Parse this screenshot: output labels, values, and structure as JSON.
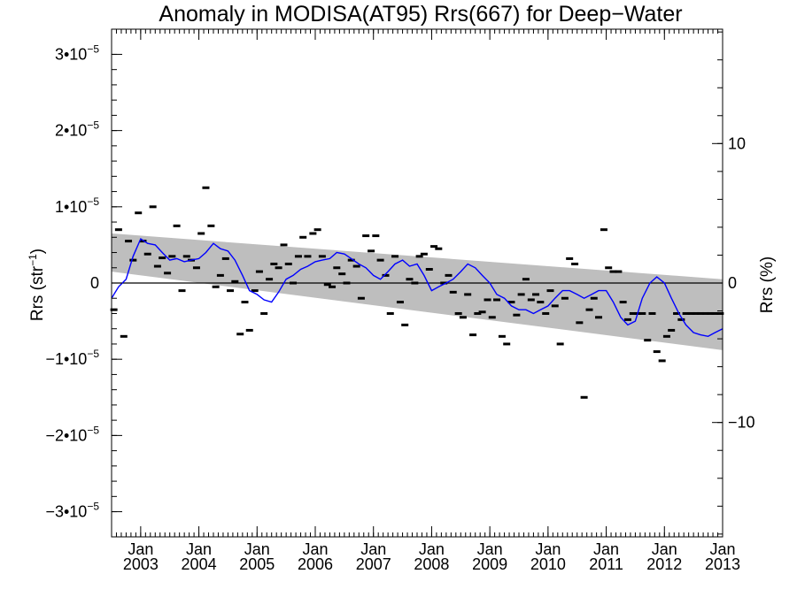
{
  "chart_data": {
    "type": "scatter",
    "title": "Anomaly in MODISA(AT95) Rrs(667) for Deep−Water",
    "ylabel_left": {
      "base": "Rrs (str",
      "sup": "−1",
      "tail": ")"
    },
    "ylabel_right": "Rrs (%)",
    "xlim": [
      2002.5,
      2013.0
    ],
    "ylim_left": [
      -3.33e-05,
      3.33e-05
    ],
    "ylim_right": [
      -18.2,
      18.2
    ],
    "left_ticks": [
      {
        "value": 3e-05,
        "coef": "3•10",
        "exp": "−5"
      },
      {
        "value": 2e-05,
        "coef": "2•10",
        "exp": "−5"
      },
      {
        "value": 1e-05,
        "coef": "1•10",
        "exp": "−5"
      },
      {
        "value": 0,
        "coef": "0",
        "exp": ""
      },
      {
        "value": -1e-05,
        "coef": "−1•10",
        "exp": "−5"
      },
      {
        "value": -2e-05,
        "coef": "−2•10",
        "exp": "−5"
      },
      {
        "value": -3e-05,
        "coef": "−3•10",
        "exp": "−5"
      }
    ],
    "right_ticks": [
      {
        "value": 10,
        "label": "10"
      },
      {
        "value": 0,
        "label": "0"
      },
      {
        "value": -10,
        "label": "−10"
      }
    ],
    "x_ticks": [
      {
        "value": 2003.0,
        "month": "Jan",
        "year": "2003"
      },
      {
        "value": 2004.0,
        "month": "Jan",
        "year": "2004"
      },
      {
        "value": 2005.0,
        "month": "Jan",
        "year": "2005"
      },
      {
        "value": 2006.0,
        "month": "Jan",
        "year": "2006"
      },
      {
        "value": 2007.0,
        "month": "Jan",
        "year": "2007"
      },
      {
        "value": 2008.0,
        "month": "Jan",
        "year": "2008"
      },
      {
        "value": 2009.0,
        "month": "Jan",
        "year": "2009"
      },
      {
        "value": 2010.0,
        "month": "Jan",
        "year": "2010"
      },
      {
        "value": 2011.0,
        "month": "Jan",
        "year": "2011"
      },
      {
        "value": 2012.0,
        "month": "Jan",
        "year": "2012"
      },
      {
        "value": 2013.0,
        "month": "Jan",
        "year": "2013"
      }
    ],
    "band": {
      "x": [
        2002.5,
        2013.0
      ],
      "upper": [
        6.5e-06,
        5e-07
      ],
      "lower": [
        1.5e-06,
        -8.8e-06
      ]
    },
    "zero_line": 0,
    "series": [
      {
        "kind": "monthly_markers",
        "x": [
          2002.54,
          2002.62,
          2002.71,
          2002.79,
          2002.87,
          2002.96,
          2003.04,
          2003.12,
          2003.21,
          2003.29,
          2003.37,
          2003.46,
          2003.54,
          2003.62,
          2003.71,
          2003.79,
          2003.87,
          2003.96,
          2004.04,
          2004.12,
          2004.21,
          2004.29,
          2004.37,
          2004.46,
          2004.54,
          2004.62,
          2004.71,
          2004.79,
          2004.87,
          2004.96,
          2005.04,
          2005.12,
          2005.21,
          2005.29,
          2005.37,
          2005.46,
          2005.54,
          2005.62,
          2005.71,
          2005.79,
          2005.87,
          2005.96,
          2006.04,
          2006.12,
          2006.21,
          2006.29,
          2006.37,
          2006.46,
          2006.54,
          2006.62,
          2006.71,
          2006.79,
          2006.87,
          2006.96,
          2007.04,
          2007.12,
          2007.21,
          2007.29,
          2007.37,
          2007.46,
          2007.54,
          2007.62,
          2007.71,
          2007.79,
          2007.87,
          2007.96,
          2008.04,
          2008.12,
          2008.21,
          2008.29,
          2008.37,
          2008.46,
          2008.54,
          2008.62,
          2008.71,
          2008.79,
          2008.87,
          2008.96,
          2009.04,
          2009.12,
          2009.21,
          2009.29,
          2009.37,
          2009.46,
          2009.54,
          2009.62,
          2009.71,
          2009.79,
          2009.87,
          2009.96,
          2010.04,
          2010.12,
          2010.21,
          2010.29,
          2010.37,
          2010.46,
          2010.54,
          2010.62,
          2010.71,
          2010.79,
          2010.87,
          2010.96,
          2011.04,
          2011.12,
          2011.21,
          2011.29,
          2011.37,
          2011.46,
          2011.54,
          2011.62,
          2011.71,
          2011.79,
          2011.87,
          2011.96,
          2012.04,
          2012.12,
          2012.21,
          2012.29,
          2012.37,
          2012.46,
          2012.54,
          2012.62,
          2012.71,
          2012.79,
          2012.87,
          2012.96
        ],
        "y": [
          -3.5e-06,
          7e-06,
          -7e-06,
          5.5e-06,
          3e-06,
          9.2e-06,
          5.5e-06,
          3.8e-06,
          1e-05,
          2.2e-06,
          3.3e-06,
          1.3e-06,
          3.5e-06,
          7.5e-06,
          -1e-06,
          3.5e-06,
          3e-06,
          2e-06,
          6.5e-06,
          1.25e-05,
          7.5e-06,
          -5e-07,
          1e-06,
          3.2e-06,
          -1e-06,
          2e-07,
          -6.7e-06,
          -2.5e-06,
          -6.2e-06,
          -1e-06,
          1.5e-06,
          -4e-06,
          5e-07,
          2.5e-06,
          2e-06,
          5e-06,
          2.5e-06,
          0.0,
          3.5e-06,
          6e-06,
          3.5e-06,
          6.5e-06,
          7e-06,
          3.5e-06,
          -2e-07,
          -5e-07,
          2e-06,
          1.2e-06,
          0.0,
          3e-06,
          2.2e-06,
          -2e-06,
          6.2e-06,
          4.2e-06,
          6.2e-06,
          3e-06,
          1e-06,
          -4e-06,
          3.5e-06,
          -2.5e-06,
          -5.5e-06,
          5e-07,
          0.0,
          3.5e-06,
          3.8e-06,
          1.8e-06,
          4.8e-06,
          4.5e-06,
          0.0,
          1e-06,
          -1.2e-06,
          -4e-06,
          -4.5e-06,
          -1.5e-06,
          -6.8e-06,
          -4e-06,
          -3.8e-06,
          -2.2e-06,
          -4.5e-06,
          -2.2e-06,
          -7e-06,
          -8e-06,
          -2.5e-06,
          -4.2e-06,
          -1.5e-06,
          5e-07,
          -2.2e-06,
          -1.5e-06,
          -2.5e-06,
          -4e-06,
          -1e-06,
          -3e-06,
          -8e-06,
          -2e-06,
          3.2e-06,
          2.5e-06,
          -5.2e-06,
          -1.5e-05,
          -3.5e-06,
          -2e-06,
          -4.5e-06,
          7e-06,
          2e-06,
          1.5e-06,
          1.5e-06,
          -2.5e-06,
          -4.8e-06,
          -4e-06,
          -4e-06,
          -4e-06,
          -7.5e-06,
          -4e-06,
          -9e-06,
          -1.02e-05,
          -7e-06,
          -6.2e-06,
          -4e-06,
          -4.8e-06,
          -4e-06,
          -4e-06,
          -4e-06,
          -4e-06,
          -4e-06,
          -4e-06,
          -4e-06,
          -4e-06
        ]
      },
      {
        "kind": "running_mean",
        "color": "#0000ff",
        "x": [
          2002.5,
          2002.62,
          2002.75,
          2002.87,
          2003.0,
          2003.12,
          2003.25,
          2003.37,
          2003.5,
          2003.62,
          2003.75,
          2003.87,
          2004.0,
          2004.12,
          2004.25,
          2004.37,
          2004.5,
          2004.62,
          2004.75,
          2004.87,
          2005.0,
          2005.12,
          2005.25,
          2005.37,
          2005.5,
          2005.62,
          2005.75,
          2005.87,
          2006.0,
          2006.12,
          2006.25,
          2006.37,
          2006.5,
          2006.62,
          2006.75,
          2006.87,
          2007.0,
          2007.12,
          2007.25,
          2007.37,
          2007.5,
          2007.62,
          2007.75,
          2007.87,
          2008.0,
          2008.12,
          2008.25,
          2008.37,
          2008.5,
          2008.62,
          2008.75,
          2008.87,
          2009.0,
          2009.12,
          2009.25,
          2009.37,
          2009.5,
          2009.62,
          2009.75,
          2009.87,
          2010.0,
          2010.12,
          2010.25,
          2010.37,
          2010.5,
          2010.62,
          2010.75,
          2010.87,
          2011.0,
          2011.12,
          2011.25,
          2011.37,
          2011.5,
          2011.62,
          2011.75,
          2011.87,
          2012.0,
          2012.12,
          2012.25,
          2012.37,
          2012.5,
          2012.62,
          2012.75,
          2012.87,
          2013.0
        ],
        "y": [
          -2e-06,
          -5e-07,
          5e-07,
          3.5e-06,
          5.8e-06,
          5.2e-06,
          5e-06,
          4e-06,
          3e-06,
          3.2e-06,
          2.8e-06,
          3e-06,
          3.2e-06,
          4e-06,
          5.2e-06,
          4.5e-06,
          4.2e-06,
          3e-06,
          1e-06,
          -1e-06,
          -1.5e-06,
          -2.2e-06,
          -2.5e-06,
          -1.2e-06,
          5e-07,
          1e-06,
          1.8e-06,
          2.2e-06,
          2.8e-06,
          3e-06,
          3.2e-06,
          4e-06,
          3.8e-06,
          3.2e-06,
          2.5e-06,
          2e-06,
          1e-06,
          5e-07,
          1.5e-06,
          2.5e-06,
          3e-06,
          2.2e-06,
          2.5e-06,
          1e-06,
          -1e-06,
          -5e-07,
          0.0,
          5e-07,
          1.5e-06,
          2.5e-06,
          2e-06,
          1e-06,
          0.0,
          -1.5e-06,
          -2e-06,
          -3e-06,
          -3.5e-06,
          -3.5e-06,
          -4e-06,
          -3.5e-06,
          -3e-06,
          -2e-06,
          -1e-06,
          -1e-06,
          -1.5e-06,
          -2e-06,
          -1.5e-06,
          -1e-06,
          -1e-06,
          -2.5e-06,
          -4.5e-06,
          -5.5e-06,
          -5e-06,
          -2e-06,
          0.0,
          8e-07,
          0.0,
          -2e-06,
          -4e-06,
          -5.5e-06,
          -6.5e-06,
          -6.8e-06,
          -7e-06,
          -6.5e-06,
          -6e-06
        ]
      }
    ]
  }
}
